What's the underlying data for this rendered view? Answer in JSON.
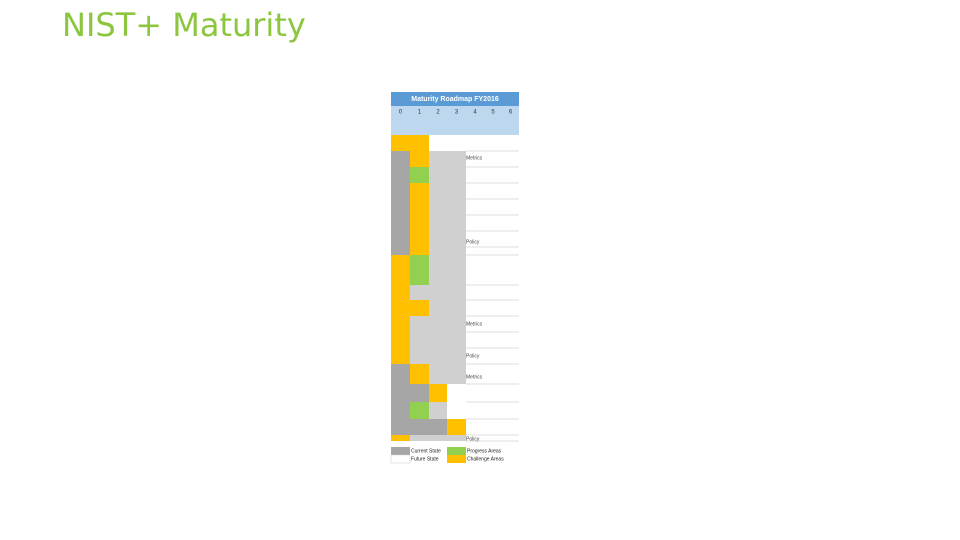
{
  "header": {
    "title": "NIST+ Maturity"
  },
  "table": {
    "title": "Maturity Roadmap FY2016",
    "columns": [
      "0",
      "1",
      "2",
      "3",
      "4",
      "5",
      "6"
    ],
    "notes": [
      "Metrics",
      "Policy",
      "Metrics",
      "Policy",
      "Metrics",
      "Policy"
    ],
    "legend": [
      "Current State",
      "Future State",
      "Progress Areas",
      "Challenge Areas"
    ]
  }
}
